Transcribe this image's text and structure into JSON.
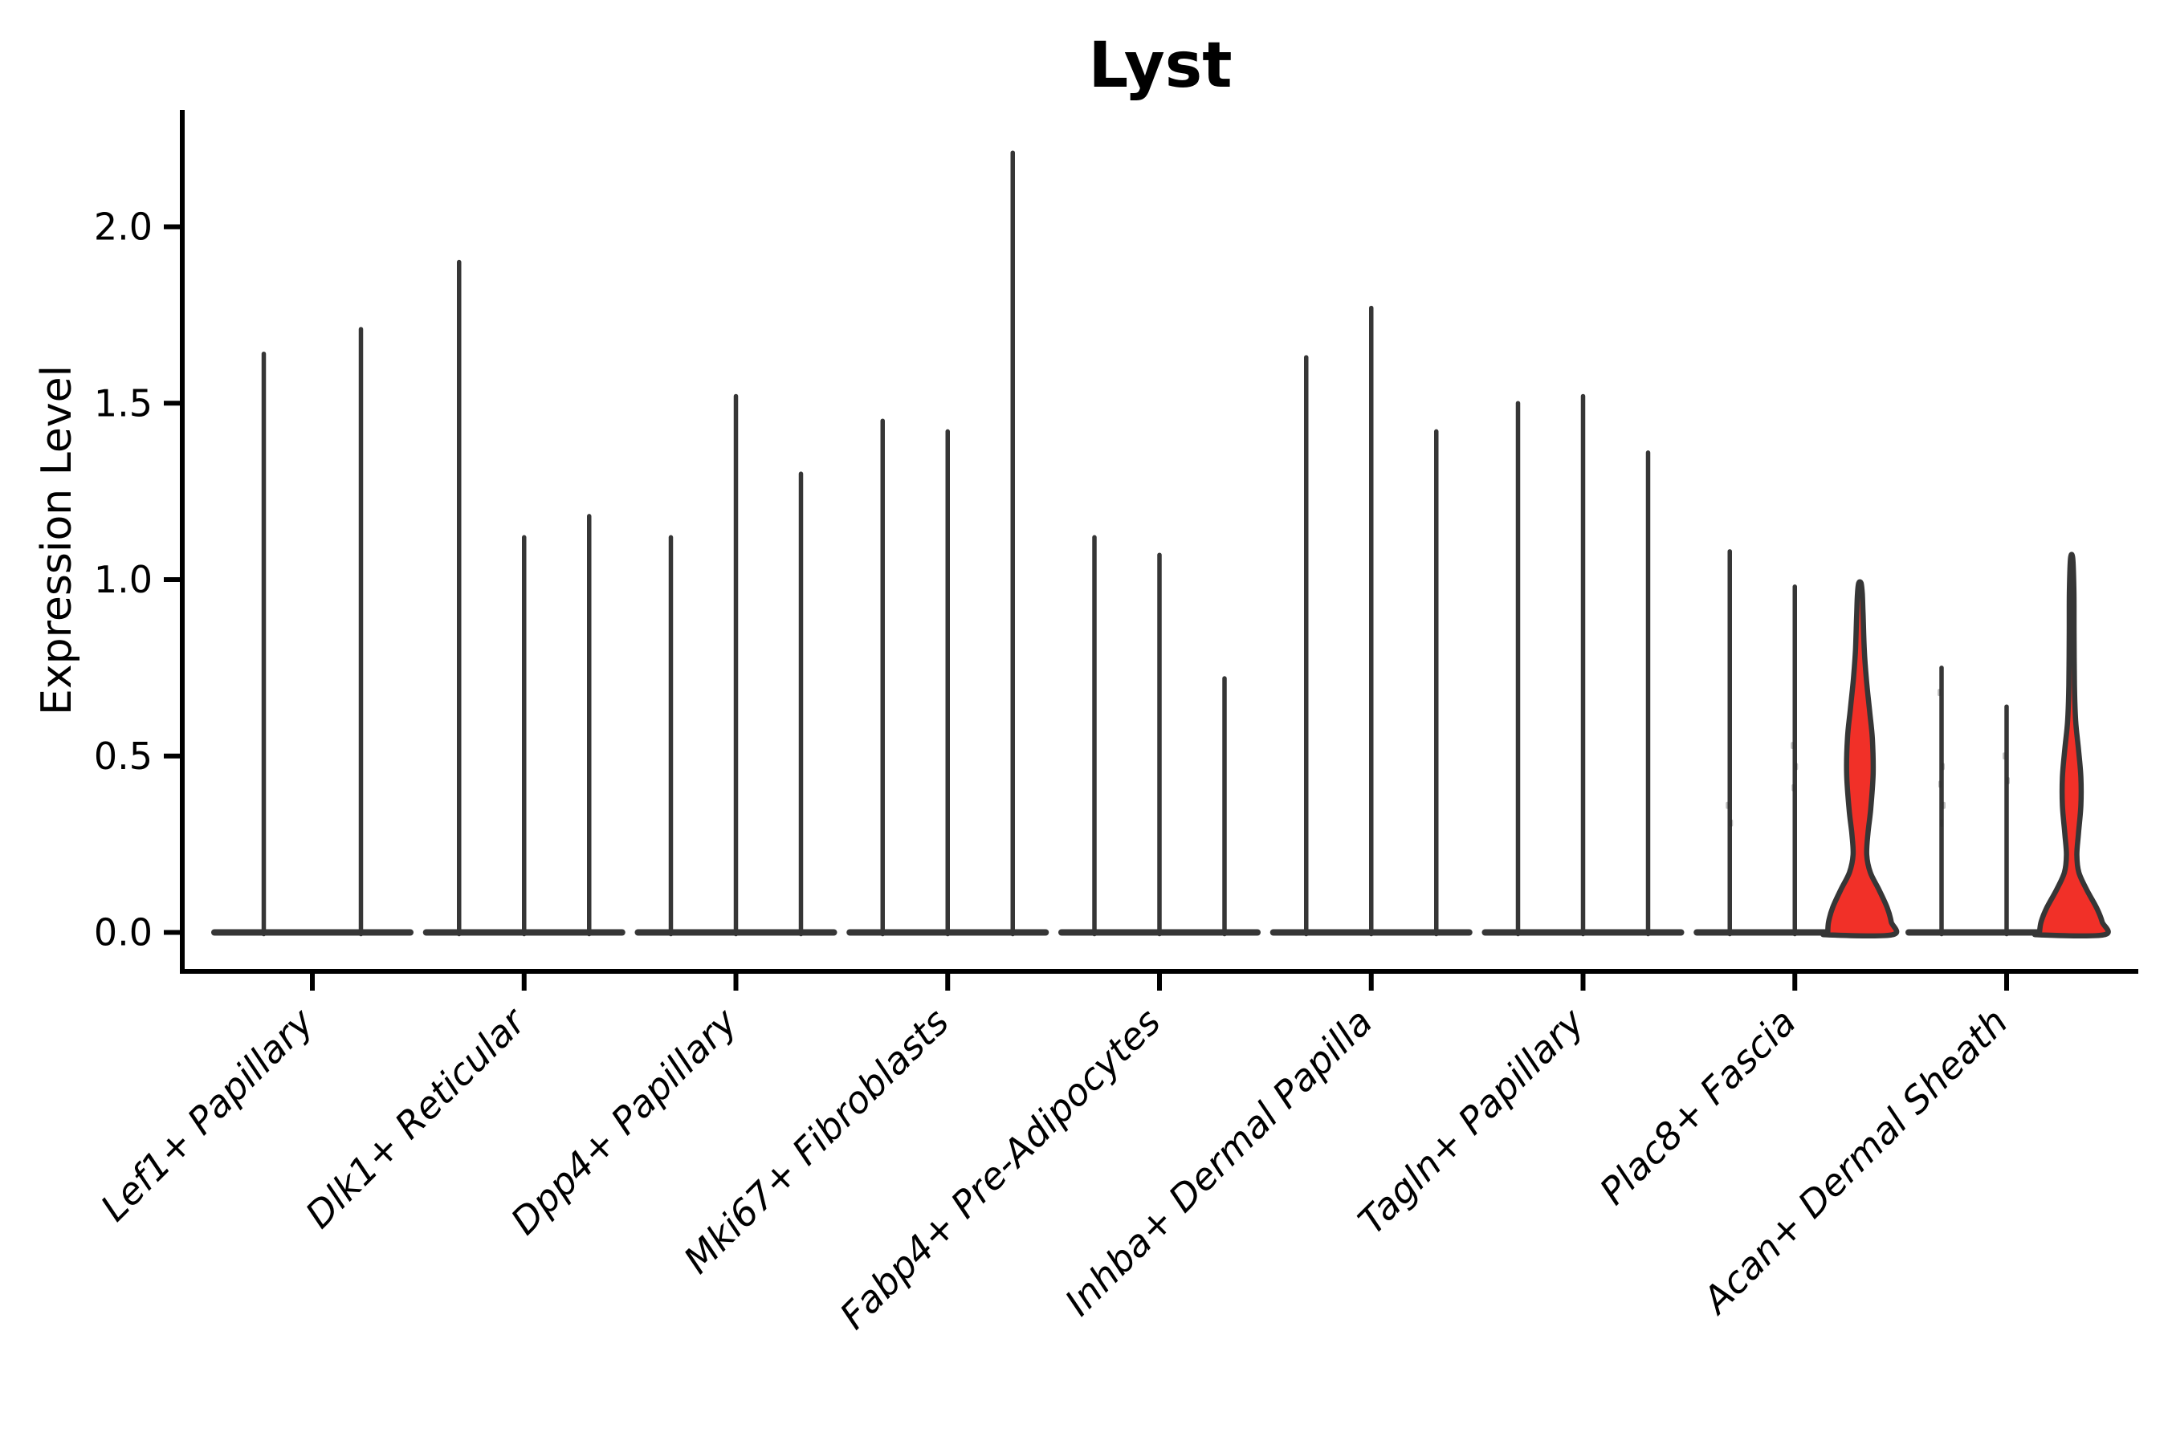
{
  "title": "Lyst",
  "y_axis": {
    "label": "Expression Level",
    "tick_labels": [
      "0.0",
      "0.5",
      "1.0",
      "1.5",
      "2.0"
    ],
    "tick_values": [
      0,
      0.5,
      1.0,
      1.5,
      2.0
    ]
  },
  "colors": {
    "outline": "#363636",
    "red_fill": "#f13028",
    "axis": "#000000",
    "jitter": "rgba(40,40,40,0.30)"
  },
  "chart_data": {
    "type": "violin",
    "title": "Lyst",
    "xlabel": "",
    "ylabel": "Expression Level",
    "ylim": [
      0,
      2.33
    ],
    "yticks": [
      0,
      0.5,
      1.0,
      1.5,
      2.0
    ],
    "legend": "none",
    "grid": false,
    "groups": [
      {
        "label": "Lef1+ Papillary",
        "violins": [
          {
            "max": 1.64
          },
          {
            "max": 1.71
          }
        ]
      },
      {
        "label": "Dlk1+ Reticular",
        "violins": [
          {
            "max": 1.9
          },
          {
            "max": 1.12
          },
          {
            "max": 1.18
          }
        ]
      },
      {
        "label": "Dpp4+ Papillary",
        "violins": [
          {
            "max": 1.12
          },
          {
            "max": 1.52
          },
          {
            "max": 1.3
          }
        ]
      },
      {
        "label": "Mki67+ Fibroblasts",
        "violins": [
          {
            "max": 1.45
          },
          {
            "max": 1.42
          },
          {
            "max": 2.21
          }
        ]
      },
      {
        "label": "Fabp4+ Pre-Adipocytes",
        "violins": [
          {
            "max": 1.12
          },
          {
            "max": 1.07
          },
          {
            "max": 0.72
          }
        ]
      },
      {
        "label": "Inhba+ Dermal Papilla",
        "violins": [
          {
            "max": 1.63
          },
          {
            "max": 1.77
          },
          {
            "max": 1.42
          }
        ]
      },
      {
        "label": "Tagln+ Papillary",
        "violins": [
          {
            "max": 1.5
          },
          {
            "max": 1.52
          },
          {
            "max": 1.36
          }
        ]
      },
      {
        "label": "Plac8+ Fascia",
        "violins": [
          {
            "max": 1.08,
            "dots": [
              0.36,
              0.31
            ]
          },
          {
            "max": 0.98,
            "dots": [
              0.53,
              0.47,
              0.41
            ]
          },
          {
            "max": 0.99,
            "filled": true,
            "profile": [
              [
                0,
                40
              ],
              [
                0.03,
                39
              ],
              [
                0.07,
                34
              ],
              [
                0.12,
                24
              ],
              [
                0.17,
                13
              ],
              [
                0.22,
                8.5
              ],
              [
                0.28,
                10
              ],
              [
                0.35,
                13.5
              ],
              [
                0.45,
                16.5
              ],
              [
                0.55,
                15.5
              ],
              [
                0.63,
                12
              ],
              [
                0.72,
                8
              ],
              [
                0.8,
                5.5
              ],
              [
                0.9,
                4
              ],
              [
                0.96,
                3
              ],
              [
                0.99,
                1.5
              ]
            ]
          }
        ]
      },
      {
        "label": "Acan+ Dermal Sheath",
        "violins": [
          {
            "max": 0.75,
            "dots": [
              0.68,
              0.47,
              0.42,
              0.36,
              0.31
            ]
          },
          {
            "max": 0.64,
            "dots": [
              0.5,
              0.43
            ]
          },
          {
            "max": 1.06,
            "filled": true,
            "profile": [
              [
                0,
                40
              ],
              [
                0.03,
                38
              ],
              [
                0.07,
                31
              ],
              [
                0.12,
                19
              ],
              [
                0.17,
                9
              ],
              [
                0.22,
                6.5
              ],
              [
                0.28,
                8.5
              ],
              [
                0.36,
                11.5
              ],
              [
                0.44,
                11.5
              ],
              [
                0.52,
                8.5
              ],
              [
                0.6,
                5
              ],
              [
                0.7,
                3.5
              ],
              [
                0.85,
                3
              ],
              [
                0.97,
                2.8
              ],
              [
                1.06,
                1.4
              ]
            ]
          }
        ]
      }
    ]
  }
}
